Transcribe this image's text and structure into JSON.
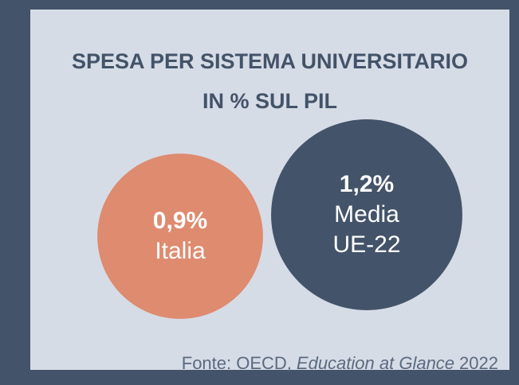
{
  "chart_data": {
    "type": "bubble",
    "title": [
      "SPESA PER SISTEMA UNIVERSITARIO",
      "IN % SUL PIL"
    ],
    "categories": [
      "Italia",
      "Media UE-22"
    ],
    "values": [
      0.9,
      1.2
    ],
    "value_labels": [
      "0,9%",
      "1,2%"
    ],
    "colors": [
      "#de8b70",
      "#435369"
    ],
    "source": [
      "Fonte: OECD,",
      "Education at Glance",
      "2022"
    ]
  }
}
